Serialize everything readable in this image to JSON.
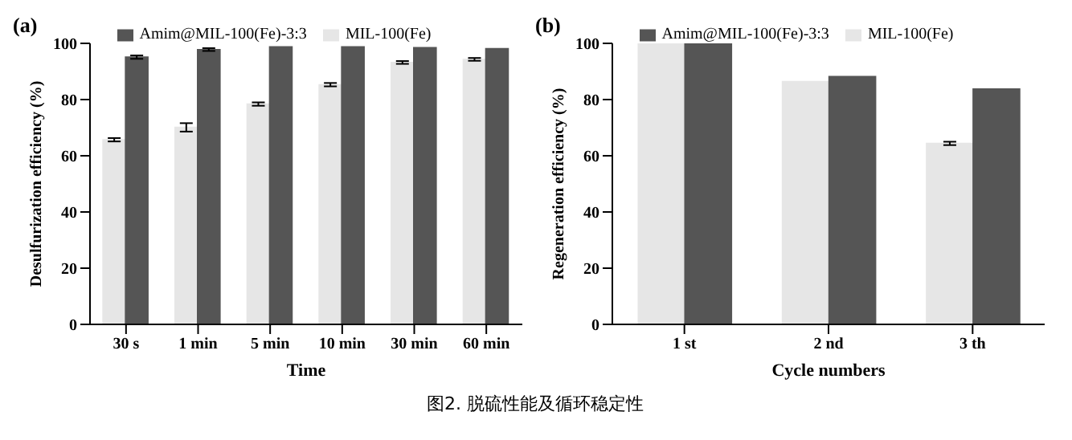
{
  "chart_data": [
    {
      "type": "bar",
      "title": "(a)",
      "xlabel": "Time",
      "ylabel": "Desulfurization efficiency (%)",
      "categories": [
        "30 s",
        "1 min",
        "5 min",
        "10 min",
        "30 min",
        "60 min"
      ],
      "ylim": [
        0,
        100
      ],
      "yticks": [
        0,
        20,
        40,
        60,
        80,
        100
      ],
      "legend": "top",
      "series": [
        {
          "name": "MIL-100(Fe)",
          "color": "#e6e6e6",
          "values": [
            65.7,
            70.1,
            78.4,
            85.3,
            93.2,
            94.3
          ],
          "errors": [
            0.6,
            1.5,
            0.6,
            0.6,
            0.5,
            0.5
          ]
        },
        {
          "name": "Amim@MIL-100(Fe)-3:3",
          "color": "#555555",
          "values": [
            95.1,
            97.8,
            98.8,
            98.8,
            98.5,
            98.1
          ],
          "errors": [
            0.6,
            0.5,
            null,
            null,
            null,
            null
          ]
        }
      ]
    },
    {
      "type": "bar",
      "title": "(b)",
      "xlabel": "Cycle numbers",
      "ylabel": "Regeneration efficiency (%)",
      "categories": [
        "1 st",
        "2 nd",
        "3 th"
      ],
      "ylim": [
        0,
        100
      ],
      "yticks": [
        0,
        20,
        40,
        60,
        80,
        100
      ],
      "legend": "top",
      "series": [
        {
          "name": "MIL-100(Fe)",
          "color": "#e6e6e6",
          "values": [
            100,
            86.4,
            64.4
          ],
          "errors": [
            null,
            null,
            0.6
          ]
        },
        {
          "name": "Amim@MIL-100(Fe)-3:3",
          "color": "#555555",
          "values": [
            100,
            88.2,
            83.8
          ]
        }
      ]
    },
    {
      "type": "other",
      "annotations": [
        "图2. 脱硫性能及循环稳定性"
      ]
    }
  ]
}
